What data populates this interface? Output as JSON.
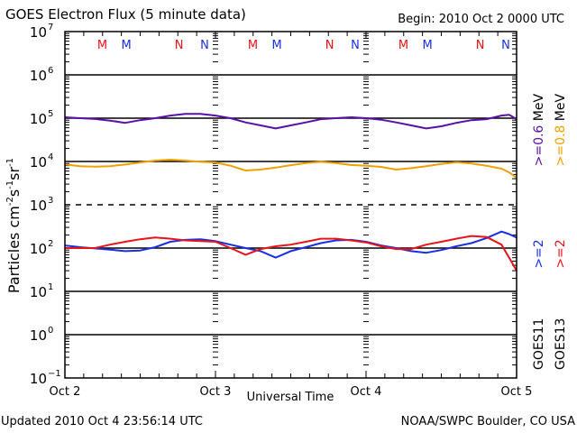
{
  "header": {
    "title": "GOES Electron Flux (5 minute data)",
    "begin": "Begin: 2010 Oct 2 0000 UTC"
  },
  "footer": {
    "updated": "Updated 2010 Oct  4 23:56:14 UTC",
    "credit": "NOAA/SWPC Boulder, CO USA"
  },
  "legend": {
    "goes11_label": "GOES11",
    "goes13_label": "GOES13",
    "goes11_ge2": ">=2",
    "goes11_ge06": ">=0.6",
    "goes13_ge2": ">=2",
    "goes13_ge08": ">=0.8",
    "unit": "MeV",
    "unit2": "MeV"
  },
  "colors": {
    "goes11_ge2": "#1a2fe0",
    "goes11_ge06": "#5a10a8",
    "goes13_ge2": "#e8141a",
    "goes13_ge08": "#f0a000",
    "marker_red": "#e8141a",
    "marker_blue": "#1a2fe0"
  },
  "chart_data": {
    "type": "line",
    "title": "GOES Electron Flux (5 minute data)",
    "xlabel": "Universal Time",
    "ylabel": "Particles cm-2 s-1 sr-1",
    "ylabel_parts": [
      "Particles cm",
      "-2",
      "s",
      "-1",
      "sr",
      "-1"
    ],
    "yscale": "log",
    "ylim": [
      0.1,
      10000000
    ],
    "yticks": [
      {
        "base": "10",
        "exp": "7"
      },
      {
        "base": "10",
        "exp": "6"
      },
      {
        "base": "10",
        "exp": "5"
      },
      {
        "base": "10",
        "exp": "4"
      },
      {
        "base": "10",
        "exp": "3"
      },
      {
        "base": "10",
        "exp": "2"
      },
      {
        "base": "10",
        "exp": "1"
      },
      {
        "base": "10",
        "exp": "0"
      },
      {
        "base": "10",
        "exp": "-1"
      }
    ],
    "xlim_days": [
      0,
      3
    ],
    "xticks": [
      "Oct 2",
      "Oct 3",
      "Oct 4",
      "Oct 5"
    ],
    "grid": "solid horizontal lines at 1e6, 1e5, 1e4, 1e2, 1e1, 1e0; dashed at 1e3",
    "threshold_dashed": 1000,
    "markers": [
      {
        "label": "M",
        "color": "red",
        "day": 0.32
      },
      {
        "label": "M",
        "color": "blue",
        "day": 0.48
      },
      {
        "label": "N",
        "color": "red",
        "day": 0.83
      },
      {
        "label": "N",
        "color": "blue",
        "day": 1.0
      },
      {
        "label": "M",
        "color": "red",
        "day": 1.32
      },
      {
        "label": "M",
        "color": "blue",
        "day": 1.48
      },
      {
        "label": "N",
        "color": "red",
        "day": 1.83
      },
      {
        "label": "N",
        "color": "blue",
        "day": 2.0
      },
      {
        "label": "M",
        "color": "red",
        "day": 2.32
      },
      {
        "label": "M",
        "color": "blue",
        "day": 2.48
      },
      {
        "label": "N",
        "color": "red",
        "day": 2.83
      },
      {
        "label": "N",
        "color": "blue",
        "day": 3.0
      }
    ],
    "x": [
      0.0,
      0.1,
      0.2,
      0.3,
      0.4,
      0.5,
      0.6,
      0.7,
      0.8,
      0.9,
      1.0,
      1.1,
      1.2,
      1.3,
      1.4,
      1.5,
      1.6,
      1.7,
      1.8,
      1.9,
      2.0,
      2.1,
      2.2,
      2.3,
      2.4,
      2.5,
      2.6,
      2.7,
      2.8,
      2.9,
      2.95,
      3.0
    ],
    "series": [
      {
        "name": "GOES11 >=0.6 MeV",
        "color_key": "goes11_ge06",
        "values": [
          105000,
          100000,
          96000,
          88000,
          78000,
          90000,
          100000,
          115000,
          125000,
          125000,
          115000,
          100000,
          80000,
          68000,
          58000,
          68000,
          80000,
          95000,
          100000,
          105000,
          100000,
          92000,
          80000,
          68000,
          58000,
          65000,
          78000,
          90000,
          95000,
          115000,
          120000,
          95000
        ]
      },
      {
        "name": "GOES13 >=0.8 MeV",
        "color_key": "goes13_ge08",
        "values": [
          8500,
          7800,
          7600,
          7800,
          8500,
          9500,
          10500,
          11000,
          10500,
          9800,
          9500,
          8000,
          6200,
          6500,
          7200,
          8200,
          9200,
          9800,
          9200,
          8300,
          8000,
          7500,
          6500,
          7000,
          7800,
          8800,
          9600,
          9000,
          8000,
          6800,
          5600,
          4200
        ]
      },
      {
        "name": "GOES11 >=2 MeV",
        "color_key": "goes11_ge2",
        "values": [
          115,
          105,
          98,
          92,
          85,
          88,
          105,
          140,
          155,
          160,
          145,
          120,
          100,
          85,
          60,
          85,
          105,
          130,
          150,
          155,
          140,
          115,
          100,
          85,
          78,
          90,
          110,
          130,
          170,
          240,
          210,
          175
        ]
      },
      {
        "name": "GOES13 >=2 MeV",
        "color_key": "goes13_ge2",
        "values": [
          100,
          100,
          100,
          120,
          140,
          160,
          175,
          165,
          150,
          145,
          140,
          100,
          70,
          95,
          110,
          120,
          140,
          165,
          165,
          150,
          135,
          110,
          95,
          95,
          120,
          140,
          165,
          190,
          180,
          120,
          60,
          30
        ]
      }
    ]
  },
  "axis_text": {
    "xlabel": "Universal Time",
    "xticks": [
      "Oct 2",
      "Oct 3",
      "Oct 4",
      "Oct 5"
    ]
  }
}
